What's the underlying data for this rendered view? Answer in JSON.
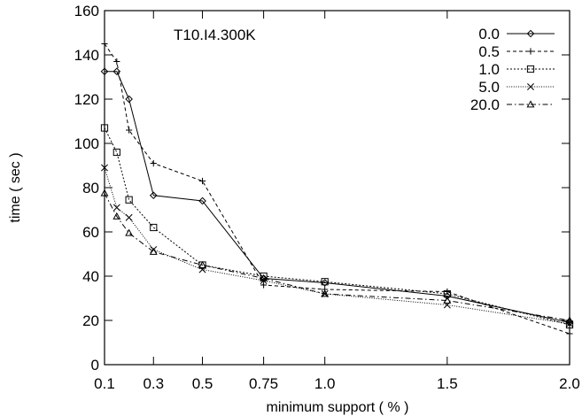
{
  "chart_data": {
    "type": "line",
    "annotation": "T10.I4.300K",
    "xlabel": "minimum support ( % )",
    "ylabel": "time ( sec )",
    "xlim": [
      0.1,
      2.0
    ],
    "ylim": [
      0,
      160
    ],
    "xticks": [
      0.1,
      0.3,
      0.5,
      0.75,
      1.0,
      1.5,
      2.0
    ],
    "xtick_labels": [
      "0.1",
      "0.3",
      "0.5",
      "0.75",
      "1.0",
      "1.5",
      "2.0"
    ],
    "yticks": [
      0,
      20,
      40,
      60,
      80,
      100,
      120,
      140,
      160
    ],
    "ytick_labels": [
      "0",
      "20",
      "40",
      "60",
      "80",
      "100",
      "120",
      "140",
      "160"
    ],
    "grid": false,
    "legend_position": "top-right",
    "series": [
      {
        "name": "0.0",
        "marker": "diamond",
        "dash": "solid",
        "x": [
          0.1,
          0.15,
          0.2,
          0.3,
          0.5,
          0.75,
          1.0,
          1.5,
          2.0
        ],
        "y": [
          132.5,
          132.5,
          120,
          76.5,
          74,
          39,
          37,
          31,
          19
        ]
      },
      {
        "name": "0.5",
        "marker": "plus",
        "dash": "dashed",
        "x": [
          0.1,
          0.15,
          0.2,
          0.3,
          0.5,
          0.75,
          1.0,
          1.5,
          2.0
        ],
        "y": [
          145,
          137,
          106,
          91,
          83,
          36,
          34,
          33,
          14
        ]
      },
      {
        "name": "1.0",
        "marker": "square",
        "dash": "dotted",
        "x": [
          0.1,
          0.15,
          0.2,
          0.3,
          0.5,
          0.75,
          1.0,
          1.5,
          2.0
        ],
        "y": [
          107,
          96,
          74.5,
          62,
          45,
          40,
          37.5,
          32,
          18
        ]
      },
      {
        "name": "5.0",
        "marker": "cross",
        "dash": "fine-dotted",
        "x": [
          0.1,
          0.15,
          0.2,
          0.3,
          0.5,
          0.75,
          1.0,
          1.5,
          2.0
        ],
        "y": [
          89,
          71,
          66.5,
          52,
          43,
          38,
          32,
          27,
          18.5
        ]
      },
      {
        "name": "20.0",
        "marker": "triangle",
        "dash": "dash-dot",
        "x": [
          0.1,
          0.15,
          0.2,
          0.3,
          0.5,
          0.75,
          1.0,
          1.5,
          2.0
        ],
        "y": [
          77.5,
          67,
          59.5,
          51,
          45,
          39,
          32,
          29,
          20
        ]
      }
    ]
  }
}
